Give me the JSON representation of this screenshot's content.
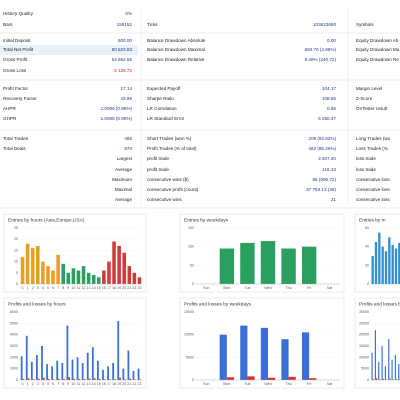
{
  "report": {
    "rows": [
      {
        "label": "History Quality",
        "value": "0%"
      },
      {
        "label": "Bars",
        "value": "159152",
        "mid_label": "Ticks",
        "mid_value": "103623690",
        "right_label": "Symbols"
      },
      {
        "label": "Initial Deposit",
        "value": "500.00",
        "mid_label": "Balance Drawdown Absolute",
        "mid_value": "0.00",
        "right_label": "Equity Drawdown Ab"
      },
      {
        "label": "Total Net Profit",
        "value": "50 523.83",
        "mid_label": "Balance Drawdown Maximal",
        "mid_value": "692.76 (4.98%)",
        "right_label": "Equity Drawdown Ma"
      },
      {
        "label": "Gross Profit",
        "value": "53 652.55",
        "mid_label": "Balance Drawdown Relative",
        "mid_value": "9.46% (240.72)",
        "right_label": "Equity Drawdown Re"
      },
      {
        "label": "Gross Loss",
        "value": "-3 128.72"
      },
      {
        "label": "Profit Factor",
        "value": "17.14",
        "mid_label": "Expected Payoff",
        "mid_value": "104.17",
        "right_label": "Margin Level"
      },
      {
        "label": "Recovery Factor",
        "value": "43.89",
        "mid_label": "Sharpe Ratio",
        "mid_value": "108.55",
        "right_label": "Z-Score"
      },
      {
        "label": "AHPR",
        "value": "1.0096 (0.96%)",
        "mid_label": "LR Correlation",
        "mid_value": "0.65",
        "right_label": "OnTester result"
      },
      {
        "label": "GHPR",
        "value": "1.0096 (0.96%)",
        "mid_label": "LR Standard Error",
        "mid_value": "6 250.47"
      },
      {
        "label": "Total Trades",
        "value": "485",
        "mid_label": "Short Trades (won %)",
        "mid_value": "209 (92.82%)",
        "right_label": "Long Trades (wo"
      },
      {
        "label": "Total Deals",
        "value": "970",
        "mid_label": "Profit Trades (% of total)",
        "mid_value": "462 (95.26%)",
        "right_label": "Loss Trades (%"
      },
      {
        "group": "Largest",
        "mid_label": "profit trade",
        "mid_value": "3 507.40",
        "right_label": "loss trade"
      },
      {
        "group": "Average",
        "mid_label": "profit trade",
        "mid_value": "116.13",
        "right_label": "loss trade"
      },
      {
        "group": "Maximum",
        "mid_label": "consecutive wins ($)",
        "mid_value": "86 (696.72)",
        "right_label": "consecutive loss"
      },
      {
        "group": "Maximal",
        "mid_label": "consecutive profit (count)",
        "mid_value": "37 753.13 (39)",
        "right_label": "consecutive loss"
      },
      {
        "group": "Average",
        "mid_label": "consecutive wins",
        "mid_value": "21",
        "right_label": "consecutive loss"
      }
    ]
  },
  "chart_data": [
    {
      "type": "bar",
      "title": "Entries by hours (Asia,Europe,USA)",
      "categories": [
        "0",
        "1",
        "2",
        "3",
        "4",
        "5",
        "6",
        "7",
        "8",
        "9",
        "10",
        "11",
        "12",
        "13",
        "14",
        "15",
        "16",
        "17",
        "18",
        "19",
        "20",
        "21",
        "22",
        "23"
      ],
      "values": [
        12,
        18,
        16,
        17,
        10,
        8,
        6,
        13,
        9,
        5,
        7,
        6,
        8,
        5,
        4,
        3,
        6,
        10,
        19,
        17,
        14,
        8,
        5,
        3
      ],
      "colors": [
        "#e8a020",
        "#e8a020",
        "#e8a020",
        "#e8a020",
        "#e8a020",
        "#e8a020",
        "#e8a020",
        "#e8a020",
        "#2aa060",
        "#2aa060",
        "#2aa060",
        "#2aa060",
        "#2aa060",
        "#2aa060",
        "#2aa060",
        "#2aa060",
        "#d03a3a",
        "#d03a3a",
        "#d03a3a",
        "#d03a3a",
        "#d03a3a",
        "#d03a3a",
        "#d03a3a",
        "#d03a3a"
      ],
      "ylim": [
        0,
        25
      ],
      "yticks": [
        0,
        5,
        10,
        15,
        20,
        25
      ],
      "grid": true
    },
    {
      "type": "bar",
      "title": "Entries by weekdays",
      "categories": [
        "Sun",
        "Mon",
        "Tue",
        "Wed",
        "Thu",
        "Fri",
        "Sat"
      ],
      "values": [
        0,
        95,
        110,
        115,
        95,
        100,
        0
      ],
      "color": "#2aa060",
      "ylim": [
        0,
        150
      ],
      "yticks": [
        0,
        50,
        100,
        150
      ],
      "grid": true
    },
    {
      "type": "bar",
      "title": "Entries by m",
      "categories": [
        null,
        null,
        null,
        null,
        null,
        null,
        null,
        null,
        null,
        null,
        null,
        null
      ],
      "values": [
        30,
        45,
        55,
        40,
        35,
        50,
        42,
        38,
        44,
        36,
        41,
        33
      ],
      "color": "#2f8fd0",
      "ylim": [
        0,
        60
      ],
      "yticks": [
        0,
        20,
        40,
        60
      ],
      "grid": true
    },
    {
      "type": "grouped",
      "title": "Profits and losses by hours",
      "categories": [
        "0",
        "1",
        "2",
        "3",
        "4",
        "5",
        "6",
        "7",
        "8",
        "9",
        "10",
        "11",
        "12",
        "13",
        "14",
        "15",
        "16",
        "17",
        "18",
        "19",
        "20",
        "21",
        "22",
        "23"
      ],
      "series": [
        {
          "color": "#3a6fd8",
          "values": [
            2100,
            3900,
            1600,
            2200,
            3000,
            1400,
            1200,
            1700,
            1500,
            4800,
            1800,
            2000,
            1500,
            2400,
            2900,
            1700,
            900,
            1200,
            1500,
            5200,
            1000,
            2600,
            800,
            1000
          ]
        },
        {
          "color": "#e03030",
          "values": [
            100,
            150,
            80,
            120,
            200,
            90,
            60,
            100,
            70,
            250,
            100,
            90,
            80,
            120,
            150,
            90,
            50,
            70,
            60,
            200,
            60,
            120,
            40,
            50
          ]
        }
      ],
      "ylim": [
        0,
        6000
      ],
      "yticks": [
        0,
        1000,
        2000,
        3000,
        4000,
        5000,
        6000
      ],
      "grid": true
    },
    {
      "type": "grouped",
      "title": "Profits and losses by weekdays",
      "categories": [
        "Sun",
        "Mon",
        "Tue",
        "Wed",
        "Thu",
        "Fri",
        "Sat"
      ],
      "series": [
        {
          "color": "#3a6fd8",
          "values": [
            0,
            10000,
            12000,
            11500,
            9000,
            10500,
            0
          ]
        },
        {
          "color": "#e03030",
          "values": [
            0,
            600,
            800,
            500,
            700,
            400,
            0
          ]
        }
      ],
      "ylim": [
        0,
        15000
      ],
      "yticks": [
        0,
        5000,
        10000,
        15000
      ],
      "grid": true
    },
    {
      "type": "grouped",
      "title": "Profits and losses by m",
      "categories": [
        null,
        null,
        null,
        null,
        null,
        null,
        null,
        null,
        null,
        null,
        null,
        null
      ],
      "series": [
        {
          "color": "#3a6fd8",
          "values": [
            12000,
            22000,
            8000,
            15000,
            6000,
            18000,
            9000,
            11000,
            7000,
            13000,
            10000,
            8000
          ]
        },
        {
          "color": "#e03030",
          "values": [
            500,
            800,
            300,
            600,
            200,
            700,
            300,
            400,
            200,
            500,
            300,
            300
          ]
        }
      ],
      "ylim": [
        0,
        30000
      ],
      "yticks": [
        0,
        5000,
        10000,
        15000,
        20000,
        25000,
        30000
      ],
      "grid": true
    }
  ]
}
